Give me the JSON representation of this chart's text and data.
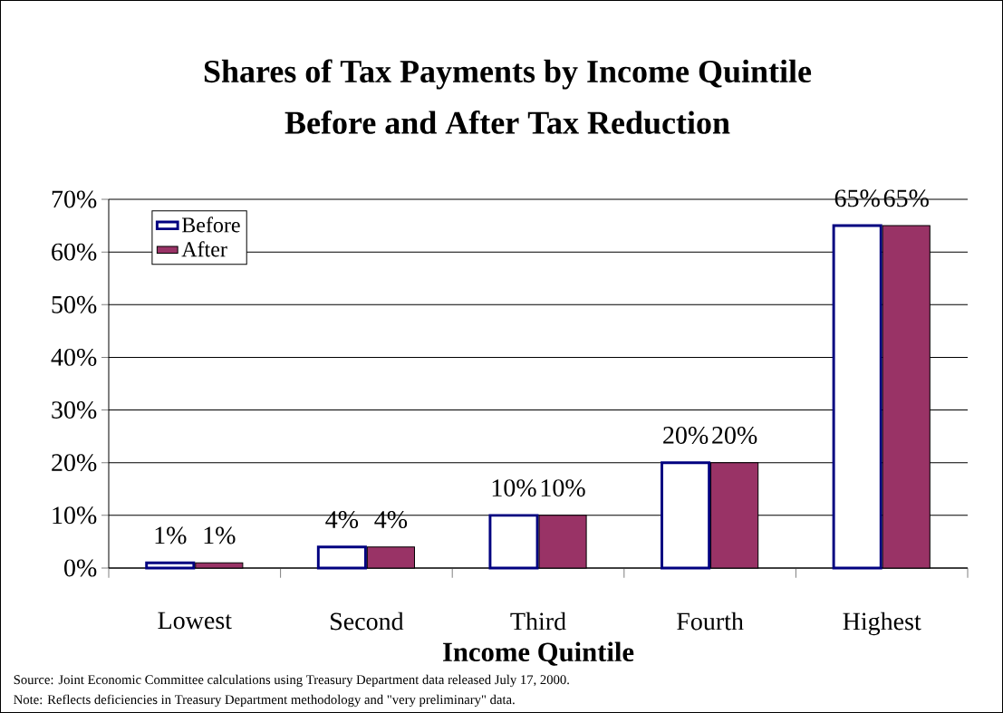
{
  "chart_data": {
    "type": "bar",
    "title": "Shares of Tax Payments by Income Quintile",
    "subtitle": "Before and After Tax Reduction",
    "xlabel": "Income Quintile",
    "categories": [
      "Lowest",
      "Second",
      "Third",
      "Fourth",
      "Highest"
    ],
    "series": [
      {
        "name": "Before",
        "color": "#000080",
        "values": [
          1,
          4,
          10,
          20,
          65
        ],
        "value_labels": [
          "1%",
          "4%",
          "10%",
          "20%",
          "65%"
        ]
      },
      {
        "name": "After",
        "color": "#993366",
        "values": [
          1,
          4,
          10,
          20,
          65
        ],
        "value_labels": [
          "1%",
          "4%",
          "10%",
          "20%",
          "65%"
        ]
      }
    ],
    "ylim": [
      0,
      70
    ],
    "yticks": [
      {
        "value": 0,
        "label": "0%"
      },
      {
        "value": 10,
        "label": "10%"
      },
      {
        "value": 20,
        "label": "20%"
      },
      {
        "value": 30,
        "label": "30%"
      },
      {
        "value": 40,
        "label": "40%"
      },
      {
        "value": 50,
        "label": "50%"
      },
      {
        "value": 60,
        "label": "60%"
      },
      {
        "value": 70,
        "label": "70%"
      }
    ],
    "grid": "y",
    "legend": "top left",
    "annotations": [
      "Source:  Joint Economic Committee calculations using Treasury Department data released July 17, 2000.",
      "Note:  Reflects deficiencies in Treasury Department methodology and \"very preliminary\" data."
    ]
  }
}
